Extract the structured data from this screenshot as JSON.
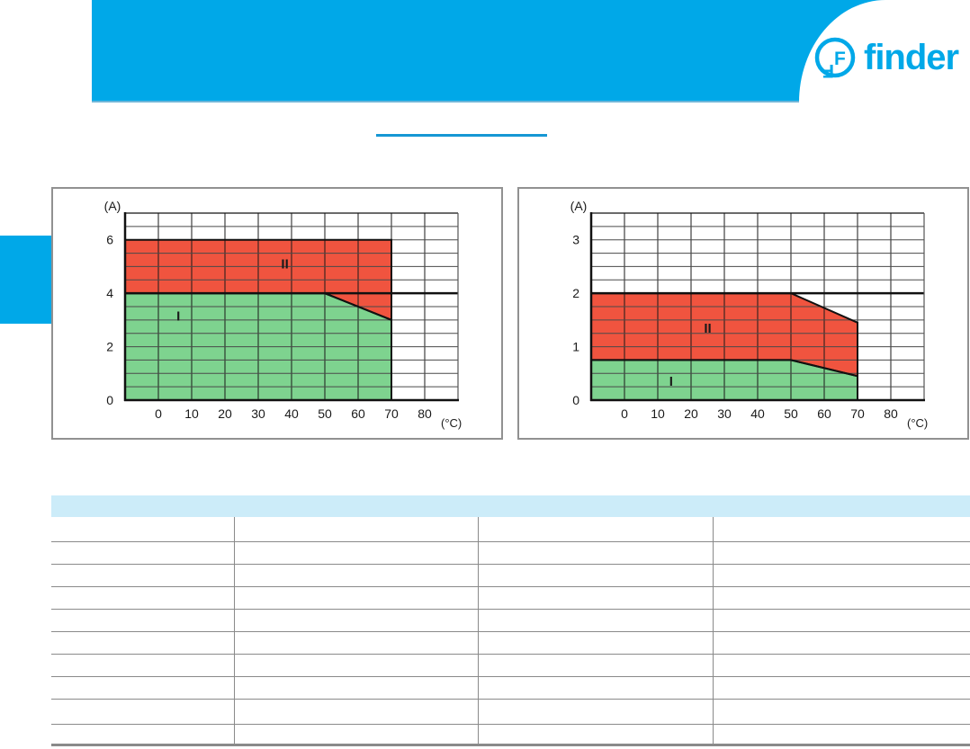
{
  "brand": {
    "logo_text": "finder",
    "brand_color": "#00A8E8"
  },
  "header": {
    "band_color": "#00A8E8",
    "underline_color": "#1697D4"
  },
  "side_tab_color": "#00A8E8",
  "chart_data": [
    {
      "type": "area",
      "title": "",
      "ylabel": "(A)",
      "xlabel": "(°C)",
      "xlim": [
        -10,
        90
      ],
      "ylim": [
        0,
        7
      ],
      "x_grid_step": 10,
      "y_grid_step": 0.5,
      "x_ticks": [
        0,
        10,
        20,
        30,
        40,
        50,
        60,
        70,
        80
      ],
      "y_ticks": [
        0,
        2,
        4,
        6
      ],
      "grid": true,
      "legend": "region labels inside areas",
      "series": [
        {
          "name": "I",
          "color": "#7ED38F",
          "points": [
            [
              -10,
              0
            ],
            [
              -10,
              4
            ],
            [
              50,
              4
            ],
            [
              70,
              3
            ],
            [
              70,
              0
            ]
          ],
          "label_pos": [
            6,
            3.15
          ]
        },
        {
          "name": "II",
          "color": "#F0543F",
          "points": [
            [
              -10,
              4
            ],
            [
              -10,
              6
            ],
            [
              70,
              6
            ],
            [
              70,
              3
            ],
            [
              50,
              4
            ]
          ],
          "label_pos": [
            38,
            5.1
          ]
        }
      ],
      "rule_lines": [
        {
          "y": 4
        }
      ]
    },
    {
      "type": "area",
      "title": "",
      "ylabel": "(A)",
      "xlabel": "(°C)",
      "xlim": [
        -10,
        90
      ],
      "ylim": [
        0,
        3.5
      ],
      "x_grid_step": 10,
      "y_grid_step": 0.25,
      "x_ticks": [
        0,
        10,
        20,
        30,
        40,
        50,
        60,
        70,
        80
      ],
      "y_ticks": [
        0,
        1,
        2,
        3
      ],
      "grid": true,
      "legend": "region labels inside areas",
      "series": [
        {
          "name": "I",
          "color": "#7ED38F",
          "points": [
            [
              -10,
              0
            ],
            [
              -10,
              0.75
            ],
            [
              50,
              0.75
            ],
            [
              70,
              0.45
            ],
            [
              70,
              0
            ]
          ],
          "label_pos": [
            14,
            0.35
          ]
        },
        {
          "name": "II",
          "color": "#F0543F",
          "points": [
            [
              -10,
              0.75
            ],
            [
              -10,
              2
            ],
            [
              50,
              2
            ],
            [
              70,
              1.45
            ],
            [
              70,
              0.45
            ],
            [
              50,
              0.75
            ]
          ],
          "label_pos": [
            25,
            1.35
          ]
        }
      ],
      "rule_lines": [
        {
          "y": 2
        }
      ]
    }
  ],
  "table": {
    "header_bg": "#CCECF9",
    "header_label": "",
    "columns": [
      "",
      "",
      "",
      ""
    ],
    "rows": [
      [
        "",
        "",
        "",
        ""
      ],
      [
        "",
        "",
        "",
        ""
      ],
      [
        "",
        "",
        "",
        ""
      ],
      [
        "",
        "",
        "",
        ""
      ],
      [
        "",
        "",
        "",
        ""
      ],
      [
        "",
        "",
        "",
        ""
      ],
      [
        "",
        "",
        "",
        ""
      ],
      [
        "",
        "",
        "",
        ""
      ],
      [
        "",
        "",
        "",
        ""
      ],
      [
        "",
        "",
        "",
        ""
      ]
    ]
  }
}
